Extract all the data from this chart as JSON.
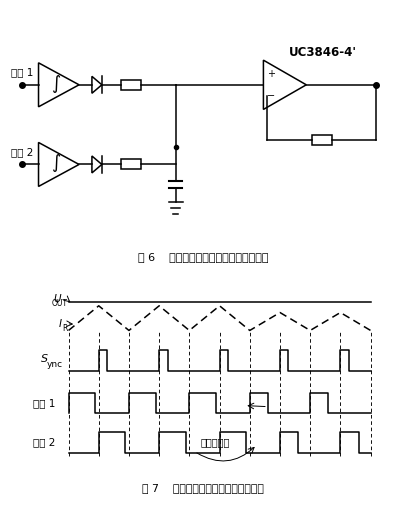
{
  "title_fig6": "图 6    两路积分波形的整流电路原理框图",
  "title_fig7": "图 7    输入电压变化时，占空比的调节",
  "bg_color": "#ffffff",
  "label_out1": "输出 1",
  "label_out2": "输出 2",
  "label_dc": "占空比调节",
  "label_winding1": "绕组 1",
  "label_winding2": "绕组 2",
  "label_uc": "UC3846-4'",
  "fig6_caption": "图 6    两路积分波形的整流电路原理框图",
  "fig7_caption": "图 7    输入电压变化时，占空比的调节"
}
